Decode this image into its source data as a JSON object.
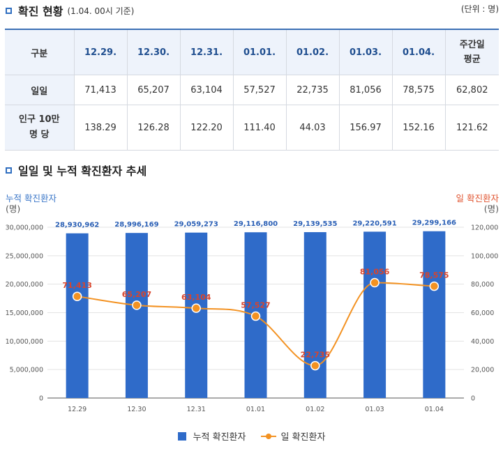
{
  "section1": {
    "title": "확진 현황",
    "subtitle": "(1.04. 00시 기준)",
    "unit": "(단위 : 명)"
  },
  "table": {
    "headers": [
      "구분",
      "12.29.",
      "12.30.",
      "12.31.",
      "01.01.",
      "01.02.",
      "01.03.",
      "01.04.",
      "주간일 평균"
    ],
    "rows": [
      {
        "label": "일일",
        "values": [
          "71,413",
          "65,207",
          "63,104",
          "57,527",
          "22,735",
          "81,056",
          "78,575",
          "62,802"
        ]
      },
      {
        "label": "인구 10만 명 당",
        "values": [
          "138.29",
          "126.28",
          "122.20",
          "111.40",
          "44.03",
          "156.97",
          "152.16",
          "121.62"
        ]
      }
    ]
  },
  "section2": {
    "title": "일일 및 누적 확진환자 추세"
  },
  "chart_labels": {
    "left_axis": "누적 확진환자",
    "left_unit": "(명)",
    "right_axis": "일 확진환자",
    "right_unit": "(명)"
  },
  "chart_data": {
    "type": "bar",
    "categories": [
      "12.29",
      "12.30",
      "12.31",
      "01.01",
      "01.02",
      "01.03",
      "01.04"
    ],
    "series": [
      {
        "name": "누적 확진환자",
        "type": "bar",
        "axis": "left",
        "color": "#2f6bc9",
        "values": [
          28930962,
          28996169,
          29059273,
          29116800,
          29139535,
          29220591,
          29299166
        ],
        "labels": [
          "28,930,962",
          "28,996,169",
          "29,059,273",
          "29,116,800",
          "29,139,535",
          "29,220,591",
          "29,299,166"
        ]
      },
      {
        "name": "일 확진환자",
        "type": "line",
        "axis": "right",
        "color": "#f39222",
        "values": [
          71413,
          65207,
          63104,
          57527,
          22735,
          81056,
          78575
        ],
        "labels": [
          "71,413",
          "65,207",
          "63,104",
          "57,527",
          "22,735",
          "81,056",
          "78,575"
        ]
      }
    ],
    "left_ylim": [
      0,
      30000000
    ],
    "left_ticks": [
      "0",
      "5,000,000",
      "10,000,000",
      "15,000,000",
      "20,000,000",
      "25,000,000",
      "30,000,000"
    ],
    "right_ylim": [
      0,
      120000
    ],
    "right_ticks": [
      "0",
      "20,000",
      "40,000",
      "60,000",
      "80,000",
      "100,000",
      "120,000"
    ],
    "grid": true,
    "legend": "bottom"
  }
}
